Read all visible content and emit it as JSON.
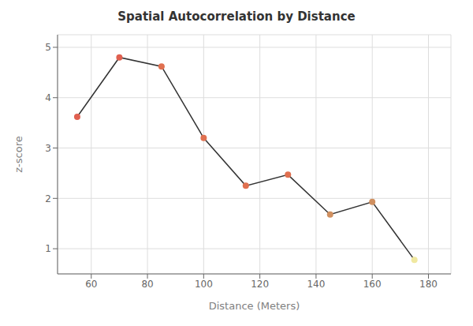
{
  "chart_data": {
    "type": "line",
    "title": "Spatial Autocorrelation by Distance",
    "xlabel": "Distance (Meters)",
    "ylabel": "z-score",
    "x": [
      55,
      70,
      85,
      100,
      115,
      130,
      145,
      160,
      175
    ],
    "values": [
      3.62,
      4.8,
      4.62,
      3.2,
      2.25,
      2.47,
      1.68,
      1.93,
      0.78
    ],
    "color": "#333333",
    "colors": [
      "#E06050",
      "#E06050",
      "#E07050",
      "#E07050",
      "#E07050",
      "#E07050",
      "#D09060",
      "#D09060",
      "#F0E8A0"
    ],
    "marker": "circle",
    "xlim": [
      48,
      188
    ],
    "xticks": [
      60,
      80,
      100,
      120,
      140,
      160,
      180
    ],
    "ylim": [
      0.5,
      5.25
    ],
    "yticks": [
      1,
      2,
      3,
      4,
      5
    ],
    "grid": true
  }
}
